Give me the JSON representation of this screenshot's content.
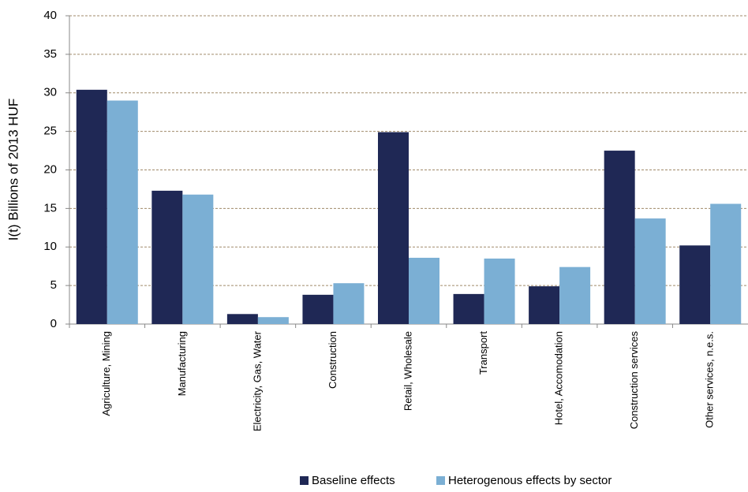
{
  "chart_data": {
    "type": "bar",
    "y_label": "I(t) Billions of 2013 HUF",
    "categories": [
      "Agriculture, Mining",
      "Manufacturing",
      "Electricity, Gas, Water",
      "Construction",
      "Retail, Wholesale",
      "Transport",
      "Hotel, Accomodation",
      "Construction services",
      "Other services, n.e.s."
    ],
    "series": [
      {
        "name": "Baseline effects",
        "color": "#1f2855",
        "values": [
          30.4,
          17.3,
          1.3,
          3.8,
          24.9,
          3.9,
          4.9,
          22.5,
          10.2
        ]
      },
      {
        "name": "Heterogenous effects by sector",
        "color": "#7bafd4",
        "values": [
          29.0,
          16.8,
          0.9,
          5.3,
          8.6,
          8.5,
          7.4,
          13.7,
          15.6
        ]
      }
    ],
    "ylim": [
      0,
      40
    ],
    "yticks": [
      0,
      5,
      10,
      15,
      20,
      25,
      30,
      35,
      40
    ],
    "grid": true
  }
}
